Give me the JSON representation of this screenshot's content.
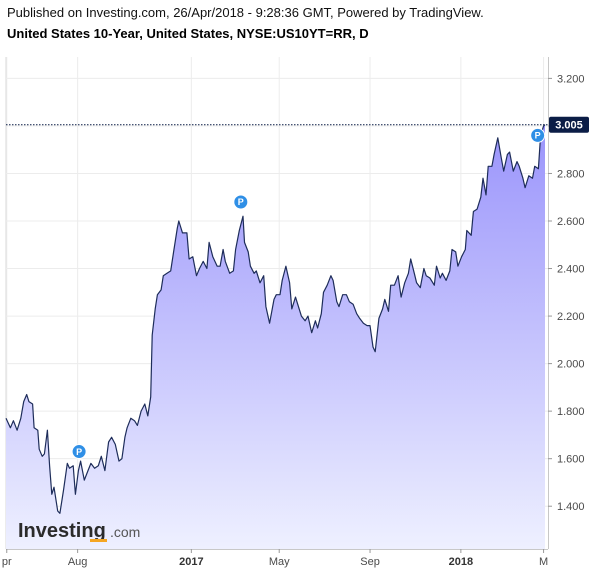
{
  "header": {
    "published": "Published on Investing.com, 26/Apr/2018 - 9:28:36 GMT, Powered by TradingView.",
    "symbol": "United States 10-Year, United States, NYSE:US10YT=RR, D"
  },
  "logo": {
    "main": "Investing",
    "tld": ".com"
  },
  "colors": {
    "line": "#1e2d5a",
    "fill_top": "#9a94fb",
    "fill_bottom": "#eef0ff",
    "marker": "#2f8fe6",
    "grid": "#ececec",
    "last_label_bg": "#0b1d46"
  },
  "chart_data": {
    "type": "area",
    "title": "United States 10-Year, United States, NYSE:US10YT=RR, D",
    "xlabel": "",
    "ylabel": "",
    "ylim": [
      1.22,
      3.29
    ],
    "xlim": [
      "2016-04-26",
      "2018-04-30"
    ],
    "y_ticks": [
      "1.400",
      "1.600",
      "1.800",
      "2.000",
      "2.200",
      "2.400",
      "2.600",
      "2.800",
      "3.000",
      "3.200"
    ],
    "x_ticks": [
      {
        "label": "pr",
        "date": "2016-04-27",
        "bold": false
      },
      {
        "label": "Aug",
        "date": "2016-08-01",
        "bold": false
      },
      {
        "label": "2017",
        "date": "2017-01-02",
        "bold": true
      },
      {
        "label": "May",
        "date": "2017-05-01",
        "bold": false
      },
      {
        "label": "Sep",
        "date": "2017-09-01",
        "bold": false
      },
      {
        "label": "2018",
        "date": "2018-01-02",
        "bold": true
      },
      {
        "label": "M",
        "date": "2018-04-24",
        "bold": false
      }
    ],
    "last_value": "3.005",
    "markers": [
      {
        "label": "P",
        "date": "2016-08-03",
        "value": 1.63
      },
      {
        "label": "P",
        "date": "2017-03-10",
        "value": 2.68
      },
      {
        "label": "P",
        "date": "2018-04-16",
        "value": 2.96
      }
    ],
    "grid": true,
    "series": [
      {
        "values": [
          [
            "2016-04-26",
            1.77
          ],
          [
            "2016-05-02",
            1.73
          ],
          [
            "2016-05-06",
            1.76
          ],
          [
            "2016-05-11",
            1.72
          ],
          [
            "2016-05-16",
            1.77
          ],
          [
            "2016-05-20",
            1.84
          ],
          [
            "2016-05-24",
            1.87
          ],
          [
            "2016-05-27",
            1.84
          ],
          [
            "2016-06-01",
            1.83
          ],
          [
            "2016-06-03",
            1.73
          ],
          [
            "2016-06-08",
            1.72
          ],
          [
            "2016-06-10",
            1.64
          ],
          [
            "2016-06-14",
            1.61
          ],
          [
            "2016-06-17",
            1.62
          ],
          [
            "2016-06-21",
            1.72
          ],
          [
            "2016-06-24",
            1.57
          ],
          [
            "2016-06-27",
            1.45
          ],
          [
            "2016-06-30",
            1.48
          ],
          [
            "2016-07-05",
            1.38
          ],
          [
            "2016-07-08",
            1.37
          ],
          [
            "2016-07-13",
            1.47
          ],
          [
            "2016-07-18",
            1.58
          ],
          [
            "2016-07-21",
            1.56
          ],
          [
            "2016-07-26",
            1.57
          ],
          [
            "2016-07-29",
            1.45
          ],
          [
            "2016-08-02",
            1.55
          ],
          [
            "2016-08-05",
            1.59
          ],
          [
            "2016-08-10",
            1.51
          ],
          [
            "2016-08-15",
            1.55
          ],
          [
            "2016-08-19",
            1.58
          ],
          [
            "2016-08-24",
            1.56
          ],
          [
            "2016-08-29",
            1.57
          ],
          [
            "2016-09-02",
            1.61
          ],
          [
            "2016-09-07",
            1.55
          ],
          [
            "2016-09-12",
            1.67
          ],
          [
            "2016-09-16",
            1.69
          ],
          [
            "2016-09-21",
            1.66
          ],
          [
            "2016-09-26",
            1.59
          ],
          [
            "2016-09-30",
            1.6
          ],
          [
            "2016-10-04",
            1.69
          ],
          [
            "2016-10-07",
            1.73
          ],
          [
            "2016-10-12",
            1.77
          ],
          [
            "2016-10-17",
            1.76
          ],
          [
            "2016-10-21",
            1.74
          ],
          [
            "2016-10-26",
            1.8
          ],
          [
            "2016-10-31",
            1.83
          ],
          [
            "2016-11-04",
            1.78
          ],
          [
            "2016-11-08",
            1.86
          ],
          [
            "2016-11-10",
            2.12
          ],
          [
            "2016-11-14",
            2.23
          ],
          [
            "2016-11-17",
            2.29
          ],
          [
            "2016-11-22",
            2.31
          ],
          [
            "2016-11-25",
            2.37
          ],
          [
            "2016-11-30",
            2.38
          ],
          [
            "2016-12-05",
            2.39
          ],
          [
            "2016-12-09",
            2.47
          ],
          [
            "2016-12-14",
            2.57
          ],
          [
            "2016-12-16",
            2.6
          ],
          [
            "2016-12-21",
            2.55
          ],
          [
            "2016-12-27",
            2.55
          ],
          [
            "2016-12-30",
            2.44
          ],
          [
            "2017-01-04",
            2.45
          ],
          [
            "2017-01-09",
            2.37
          ],
          [
            "2017-01-13",
            2.4
          ],
          [
            "2017-01-18",
            2.43
          ],
          [
            "2017-01-23",
            2.4
          ],
          [
            "2017-01-26",
            2.51
          ],
          [
            "2017-01-31",
            2.45
          ],
          [
            "2017-02-06",
            2.41
          ],
          [
            "2017-02-10",
            2.41
          ],
          [
            "2017-02-14",
            2.48
          ],
          [
            "2017-02-17",
            2.43
          ],
          [
            "2017-02-23",
            2.38
          ],
          [
            "2017-02-28",
            2.39
          ],
          [
            "2017-03-03",
            2.48
          ],
          [
            "2017-03-08",
            2.56
          ],
          [
            "2017-03-13",
            2.62
          ],
          [
            "2017-03-15",
            2.51
          ],
          [
            "2017-03-20",
            2.47
          ],
          [
            "2017-03-23",
            2.41
          ],
          [
            "2017-03-28",
            2.38
          ],
          [
            "2017-03-31",
            2.39
          ],
          [
            "2017-04-05",
            2.34
          ],
          [
            "2017-04-10",
            2.37
          ],
          [
            "2017-04-13",
            2.24
          ],
          [
            "2017-04-18",
            2.17
          ],
          [
            "2017-04-24",
            2.27
          ],
          [
            "2017-04-27",
            2.29
          ],
          [
            "2017-05-02",
            2.29
          ],
          [
            "2017-05-05",
            2.35
          ],
          [
            "2017-05-10",
            2.41
          ],
          [
            "2017-05-15",
            2.34
          ],
          [
            "2017-05-18",
            2.23
          ],
          [
            "2017-05-23",
            2.28
          ],
          [
            "2017-05-26",
            2.25
          ],
          [
            "2017-05-31",
            2.2
          ],
          [
            "2017-06-05",
            2.18
          ],
          [
            "2017-06-09",
            2.2
          ],
          [
            "2017-06-14",
            2.13
          ],
          [
            "2017-06-19",
            2.18
          ],
          [
            "2017-06-22",
            2.15
          ],
          [
            "2017-06-27",
            2.21
          ],
          [
            "2017-06-30",
            2.3
          ],
          [
            "2017-07-05",
            2.33
          ],
          [
            "2017-07-10",
            2.37
          ],
          [
            "2017-07-13",
            2.35
          ],
          [
            "2017-07-18",
            2.26
          ],
          [
            "2017-07-21",
            2.24
          ],
          [
            "2017-07-26",
            2.29
          ],
          [
            "2017-07-31",
            2.29
          ],
          [
            "2017-08-04",
            2.26
          ],
          [
            "2017-08-09",
            2.25
          ],
          [
            "2017-08-14",
            2.21
          ],
          [
            "2017-08-18",
            2.19
          ],
          [
            "2017-08-23",
            2.17
          ],
          [
            "2017-08-28",
            2.16
          ],
          [
            "2017-09-01",
            2.16
          ],
          [
            "2017-09-05",
            2.07
          ],
          [
            "2017-09-08",
            2.05
          ],
          [
            "2017-09-13",
            2.19
          ],
          [
            "2017-09-18",
            2.23
          ],
          [
            "2017-09-21",
            2.27
          ],
          [
            "2017-09-26",
            2.22
          ],
          [
            "2017-09-29",
            2.33
          ],
          [
            "2017-10-04",
            2.33
          ],
          [
            "2017-10-09",
            2.37
          ],
          [
            "2017-10-13",
            2.28
          ],
          [
            "2017-10-18",
            2.34
          ],
          [
            "2017-10-23",
            2.38
          ],
          [
            "2017-10-26",
            2.44
          ],
          [
            "2017-10-31",
            2.38
          ],
          [
            "2017-11-03",
            2.34
          ],
          [
            "2017-11-08",
            2.32
          ],
          [
            "2017-11-13",
            2.4
          ],
          [
            "2017-11-16",
            2.37
          ],
          [
            "2017-11-21",
            2.36
          ],
          [
            "2017-11-27",
            2.33
          ],
          [
            "2017-11-30",
            2.41
          ],
          [
            "2017-12-05",
            2.36
          ],
          [
            "2017-12-08",
            2.38
          ],
          [
            "2017-12-13",
            2.35
          ],
          [
            "2017-12-18",
            2.39
          ],
          [
            "2017-12-21",
            2.48
          ],
          [
            "2017-12-26",
            2.47
          ],
          [
            "2017-12-29",
            2.41
          ],
          [
            "2018-01-03",
            2.45
          ],
          [
            "2018-01-08",
            2.48
          ],
          [
            "2018-01-10",
            2.56
          ],
          [
            "2018-01-16",
            2.54
          ],
          [
            "2018-01-19",
            2.64
          ],
          [
            "2018-01-24",
            2.65
          ],
          [
            "2018-01-29",
            2.7
          ],
          [
            "2018-02-01",
            2.78
          ],
          [
            "2018-02-05",
            2.71
          ],
          [
            "2018-02-08",
            2.83
          ],
          [
            "2018-02-13",
            2.83
          ],
          [
            "2018-02-16",
            2.88
          ],
          [
            "2018-02-21",
            2.95
          ],
          [
            "2018-02-26",
            2.86
          ],
          [
            "2018-03-01",
            2.81
          ],
          [
            "2018-03-06",
            2.88
          ],
          [
            "2018-03-09",
            2.89
          ],
          [
            "2018-03-14",
            2.81
          ],
          [
            "2018-03-19",
            2.85
          ],
          [
            "2018-03-22",
            2.83
          ],
          [
            "2018-03-27",
            2.78
          ],
          [
            "2018-03-30",
            2.74
          ],
          [
            "2018-04-04",
            2.79
          ],
          [
            "2018-04-09",
            2.78
          ],
          [
            "2018-04-12",
            2.83
          ],
          [
            "2018-04-17",
            2.82
          ],
          [
            "2018-04-20",
            2.96
          ],
          [
            "2018-04-24",
            3.0
          ],
          [
            "2018-04-26",
            3.005
          ]
        ]
      }
    ]
  }
}
